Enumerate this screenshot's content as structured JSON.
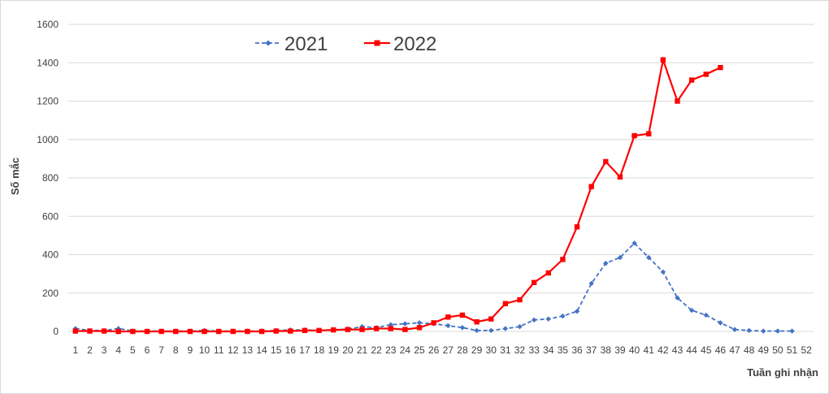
{
  "chart_data": {
    "type": "line",
    "title": "",
    "xlabel": "Tuần ghi nhận",
    "ylabel": "Số mắc",
    "ylim": [
      0,
      1600
    ],
    "y_ticks": [
      0,
      200,
      400,
      600,
      800,
      1000,
      1200,
      1400,
      1600
    ],
    "y_tick_labels": [
      "0",
      "200",
      "400",
      "600",
      "800",
      "1000",
      "1200",
      "1400",
      "1600"
    ],
    "categories": [
      "1",
      "2",
      "3",
      "4",
      "5",
      "6",
      "7",
      "8",
      "9",
      "10",
      "11",
      "12",
      "13",
      "14",
      "15",
      "16",
      "17",
      "18",
      "19",
      "20",
      "21",
      "22",
      "23",
      "24",
      "25",
      "26",
      "27",
      "28",
      "29",
      "30",
      "31",
      "32",
      "33",
      "34",
      "35",
      "36",
      "37",
      "38",
      "39",
      "40",
      "41",
      "42",
      "43",
      "44",
      "45",
      "46",
      "47",
      "48",
      "49",
      "50",
      "51",
      "52"
    ],
    "grid": true,
    "legend": "top-left",
    "series": [
      {
        "name": "2021",
        "color": "#4472c4",
        "style": "dashed",
        "marker": "diamond",
        "values": [
          15,
          5,
          5,
          15,
          2,
          2,
          2,
          2,
          2,
          5,
          2,
          2,
          2,
          2,
          5,
          8,
          8,
          5,
          8,
          12,
          25,
          20,
          35,
          40,
          45,
          40,
          30,
          20,
          5,
          5,
          15,
          25,
          60,
          65,
          80,
          105,
          250,
          355,
          385,
          460,
          385,
          310,
          175,
          110,
          85,
          45,
          10,
          5,
          2,
          2,
          2,
          null
        ]
      },
      {
        "name": "2022",
        "color": "#ff0000",
        "style": "solid",
        "marker": "square",
        "values": [
          2,
          2,
          2,
          0,
          0,
          0,
          0,
          0,
          0,
          0,
          0,
          0,
          0,
          0,
          2,
          2,
          5,
          5,
          8,
          10,
          10,
          15,
          15,
          10,
          20,
          45,
          75,
          85,
          50,
          65,
          145,
          165,
          255,
          305,
          375,
          545,
          755,
          885,
          805,
          1020,
          1030,
          1415,
          1200,
          1310,
          1340,
          1375,
          null,
          null,
          null,
          null,
          null,
          null
        ]
      }
    ]
  }
}
